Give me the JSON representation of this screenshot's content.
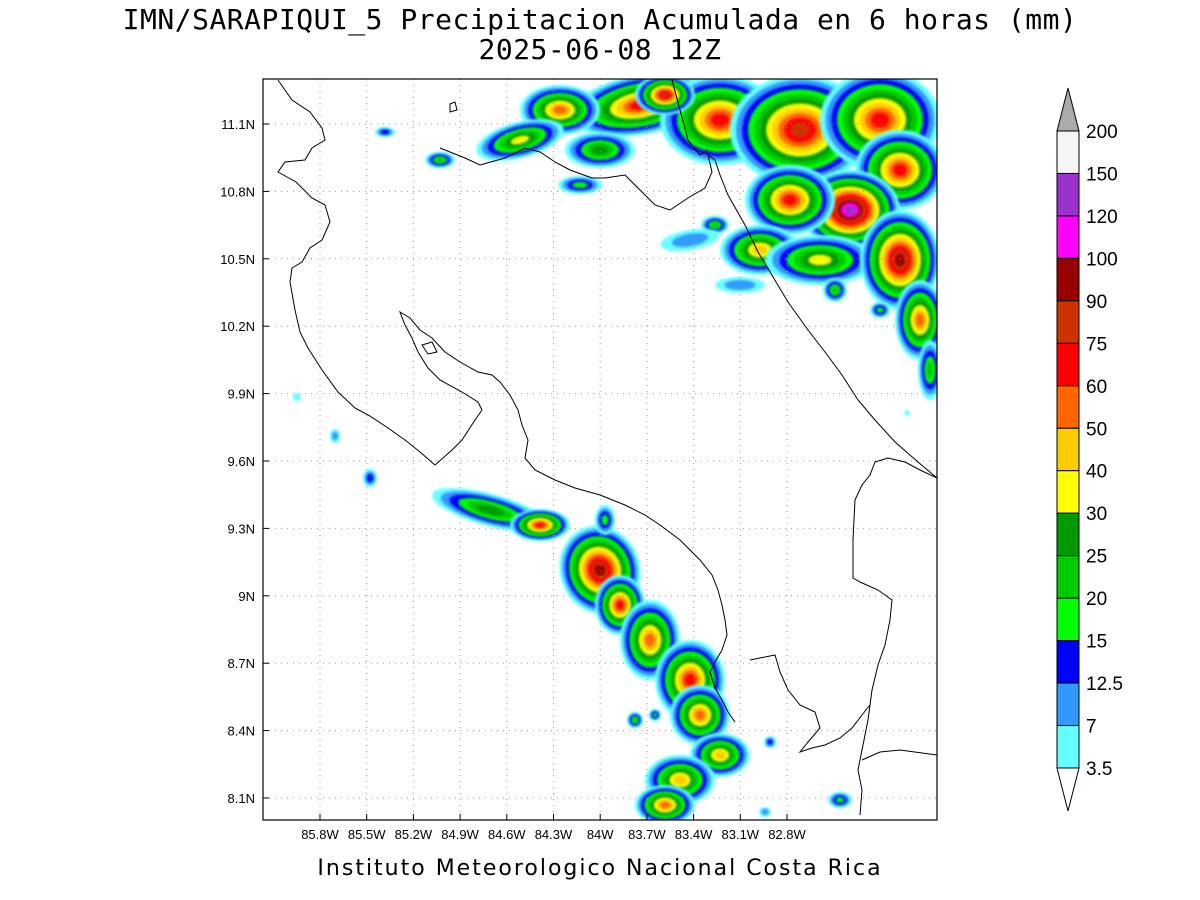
{
  "title_line1": "IMN/SARAPIQUI_5 Precipitacion Acumulada en 6 horas (mm)",
  "title_line2": "2025-06-08 12Z",
  "credit": "Instituto Meteorologico Nacional Costa Rica",
  "lat_ticks": [
    {
      "value": 11.1,
      "label": "11.1N"
    },
    {
      "value": 10.8,
      "label": "10.8N"
    },
    {
      "value": 10.5,
      "label": "10.5N"
    },
    {
      "value": 10.2,
      "label": "10.2N"
    },
    {
      "value": 9.9,
      "label": "9.9N"
    },
    {
      "value": 9.6,
      "label": "9.6N"
    },
    {
      "value": 9.3,
      "label": "9.3N"
    },
    {
      "value": 9.0,
      "label": "9N"
    },
    {
      "value": 8.7,
      "label": "8.7N"
    },
    {
      "value": 8.4,
      "label": "8.4N"
    },
    {
      "value": 8.1,
      "label": "8.1N"
    }
  ],
  "lon_ticks": [
    {
      "value": -85.8,
      "label": "85.8W"
    },
    {
      "value": -85.5,
      "label": "85.5W"
    },
    {
      "value": -85.2,
      "label": "85.2W"
    },
    {
      "value": -84.9,
      "label": "84.9W"
    },
    {
      "value": -84.6,
      "label": "84.6W"
    },
    {
      "value": -84.3,
      "label": "84.3W"
    },
    {
      "value": -84.0,
      "label": "84W"
    },
    {
      "value": -83.7,
      "label": "83.7W"
    },
    {
      "value": -83.4,
      "label": "83.4W"
    },
    {
      "value": -83.1,
      "label": "83.1W"
    },
    {
      "value": -82.8,
      "label": "82.8W"
    }
  ],
  "colorbar": {
    "labels": [
      "3.5",
      "7",
      "12.5",
      "15",
      "20",
      "25",
      "30",
      "40",
      "50",
      "60",
      "75",
      "90",
      "100",
      "120",
      "150",
      "200"
    ],
    "colors": [
      "#66ffff",
      "#3399ff",
      "#0000ff",
      "#00ff00",
      "#00cc00",
      "#009900",
      "#ffff00",
      "#ffcc00",
      "#ff6600",
      "#ff0000",
      "#cc3300",
      "#990000",
      "#ff00ff",
      "#9933cc",
      "#f5f5f5",
      "#aaaaaa"
    ]
  }
}
